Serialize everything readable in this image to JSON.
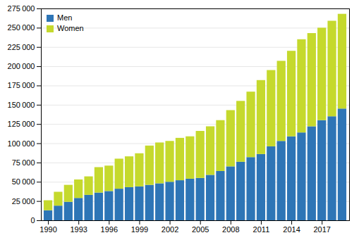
{
  "chart_data": {
    "type": "bar",
    "stacked": true,
    "x": [
      1990,
      1991,
      1992,
      1993,
      1994,
      1995,
      1996,
      1997,
      1998,
      1999,
      2000,
      2001,
      2002,
      2003,
      2004,
      2005,
      2006,
      2007,
      2008,
      2009,
      2010,
      2011,
      2012,
      2013,
      2014,
      2015,
      2016,
      2017,
      2018,
      2019
    ],
    "series": [
      {
        "name": "Men",
        "color": "#2E75B6",
        "values": [
          13000,
          19000,
          24000,
          29000,
          33000,
          36000,
          38000,
          41000,
          43000,
          44000,
          46000,
          48000,
          50000,
          52000,
          54000,
          55000,
          59000,
          64000,
          70000,
          76000,
          82000,
          86000,
          96000,
          103000,
          109000,
          114000,
          122000,
          130000,
          135000,
          145000
        ]
      },
      {
        "name": "Women",
        "color": "#C5D92D",
        "values": [
          13000,
          18000,
          22000,
          24000,
          24000,
          33000,
          33000,
          39000,
          40000,
          43000,
          51000,
          53000,
          53000,
          55000,
          55000,
          61000,
          63000,
          66000,
          73000,
          79000,
          85000,
          96000,
          99000,
          104000,
          111000,
          121000,
          121000,
          120000,
          124000,
          123000
        ]
      }
    ],
    "xlim": [
      1989.3,
      2019.7
    ],
    "xticks": [
      1990,
      1993,
      1996,
      1999,
      2002,
      2005,
      2008,
      2011,
      2014,
      2017
    ],
    "ylim": [
      0,
      275000
    ],
    "yticks": [
      0,
      {
        "value": 25000,
        "label": "25 000"
      },
      {
        "value": 50000,
        "label": "50 000"
      },
      {
        "value": 75000,
        "label": "75 000"
      },
      {
        "value": 100000,
        "label": "100 000"
      },
      {
        "value": 125000,
        "label": "125 000"
      },
      {
        "value": 150000,
        "label": "150 000"
      },
      {
        "value": 175000,
        "label": "175 000"
      },
      {
        "value": 200000,
        "label": "200 000"
      },
      {
        "value": 225000,
        "label": "225 000"
      },
      {
        "value": 250000,
        "label": "250 000"
      },
      {
        "value": 275000,
        "label": "275 000"
      }
    ],
    "grid": true,
    "legend": "upper left"
  }
}
